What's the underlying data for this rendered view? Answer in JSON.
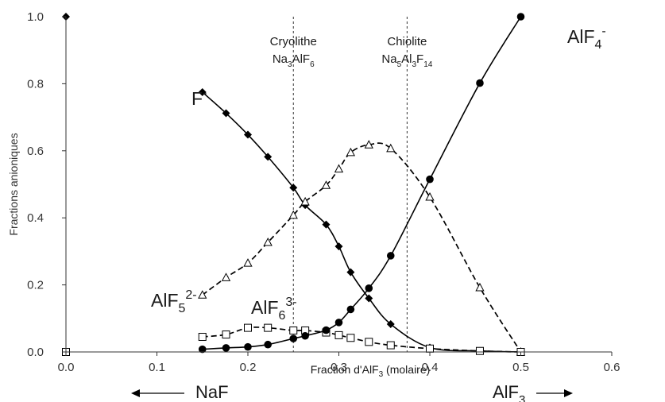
{
  "chart_data": {
    "type": "line",
    "xlabel": "Fraction d'AlF",
    "xlabel_sub": "3",
    "xlabel_suffix": " (molaire)",
    "ylabel": "Fractions anioniques",
    "xlim": [
      0,
      0.6
    ],
    "ylim": [
      0,
      1.0
    ],
    "xticks": [
      "0.0",
      "0.1",
      "0.2",
      "0.3",
      "0.4",
      "0.5",
      "0.6"
    ],
    "yticks": [
      "0.0",
      "0.2",
      "0.4",
      "0.6",
      "0.8",
      "1.0"
    ],
    "grid": false,
    "vlines": [
      {
        "x": 0.25,
        "label": "Cryolithe",
        "formula": [
          [
            "Na",
            ""
          ],
          [
            "3",
            "sub"
          ],
          [
            "AlF",
            ""
          ],
          [
            "6",
            "sub"
          ]
        ]
      },
      {
        "x": 0.375,
        "label": "Chiolite",
        "formula": [
          [
            "Na",
            ""
          ],
          [
            "5",
            "sub"
          ],
          [
            "Al",
            ""
          ],
          [
            "3",
            "sub"
          ],
          [
            "F",
            ""
          ],
          [
            "14",
            "sub"
          ]
        ]
      }
    ],
    "series": [
      {
        "label": [
          [
            "F",
            ""
          ],
          [
            "-",
            "sup"
          ]
        ],
        "marker": "diamond",
        "style": "solid",
        "x": [
          0,
          0.15,
          0.176,
          0.2,
          0.222,
          0.25,
          0.263,
          0.286,
          0.3,
          0.313,
          0.333,
          0.357,
          0.4,
          0.455,
          0.5
        ],
        "y": [
          1.0,
          0.775,
          0.712,
          0.648,
          0.582,
          0.49,
          0.438,
          0.38,
          0.315,
          0.238,
          0.16,
          0.083,
          0.013,
          0.003,
          0.0
        ]
      },
      {
        "label": [
          [
            "AlF",
            ""
          ],
          [
            "5",
            "sub"
          ],
          [
            "2-",
            "sup"
          ]
        ],
        "marker": "triangle",
        "style": "dashed",
        "x": [
          0.15,
          0.176,
          0.2,
          0.222,
          0.25,
          0.263,
          0.286,
          0.3,
          0.313,
          0.333,
          0.357,
          0.4,
          0.455,
          0.5
        ],
        "y": [
          0.17,
          0.222,
          0.265,
          0.327,
          0.408,
          0.448,
          0.497,
          0.546,
          0.595,
          0.618,
          0.607,
          0.462,
          0.192,
          0.0
        ]
      },
      {
        "label": [
          [
            "AlF",
            ""
          ],
          [
            "6",
            "sub"
          ],
          [
            "3-",
            "sup"
          ]
        ],
        "marker": "square",
        "style": "dashed",
        "x": [
          0,
          0.15,
          0.176,
          0.2,
          0.222,
          0.25,
          0.263,
          0.286,
          0.3,
          0.313,
          0.333,
          0.357,
          0.4,
          0.455,
          0.5
        ],
        "y": [
          0.0,
          0.045,
          0.052,
          0.072,
          0.072,
          0.064,
          0.064,
          0.058,
          0.05,
          0.042,
          0.03,
          0.02,
          0.01,
          0.003,
          0.0
        ]
      },
      {
        "label": [
          [
            "AlF",
            ""
          ],
          [
            "4",
            "sub"
          ],
          [
            "-",
            "sup"
          ]
        ],
        "marker": "circle",
        "style": "solid",
        "x": [
          0.15,
          0.176,
          0.2,
          0.222,
          0.25,
          0.263,
          0.286,
          0.3,
          0.313,
          0.333,
          0.357,
          0.4,
          0.455,
          0.5
        ],
        "y": [
          0.008,
          0.012,
          0.015,
          0.022,
          0.04,
          0.048,
          0.065,
          0.088,
          0.127,
          0.19,
          0.287,
          0.515,
          0.802,
          1.0
        ]
      }
    ],
    "arrows": [
      {
        "label": [
          [
            "NaF",
            ""
          ]
        ],
        "direction": "left"
      },
      {
        "label": [
          [
            "AlF",
            ""
          ],
          [
            "3",
            "sub"
          ]
        ],
        "direction": "right"
      }
    ]
  }
}
